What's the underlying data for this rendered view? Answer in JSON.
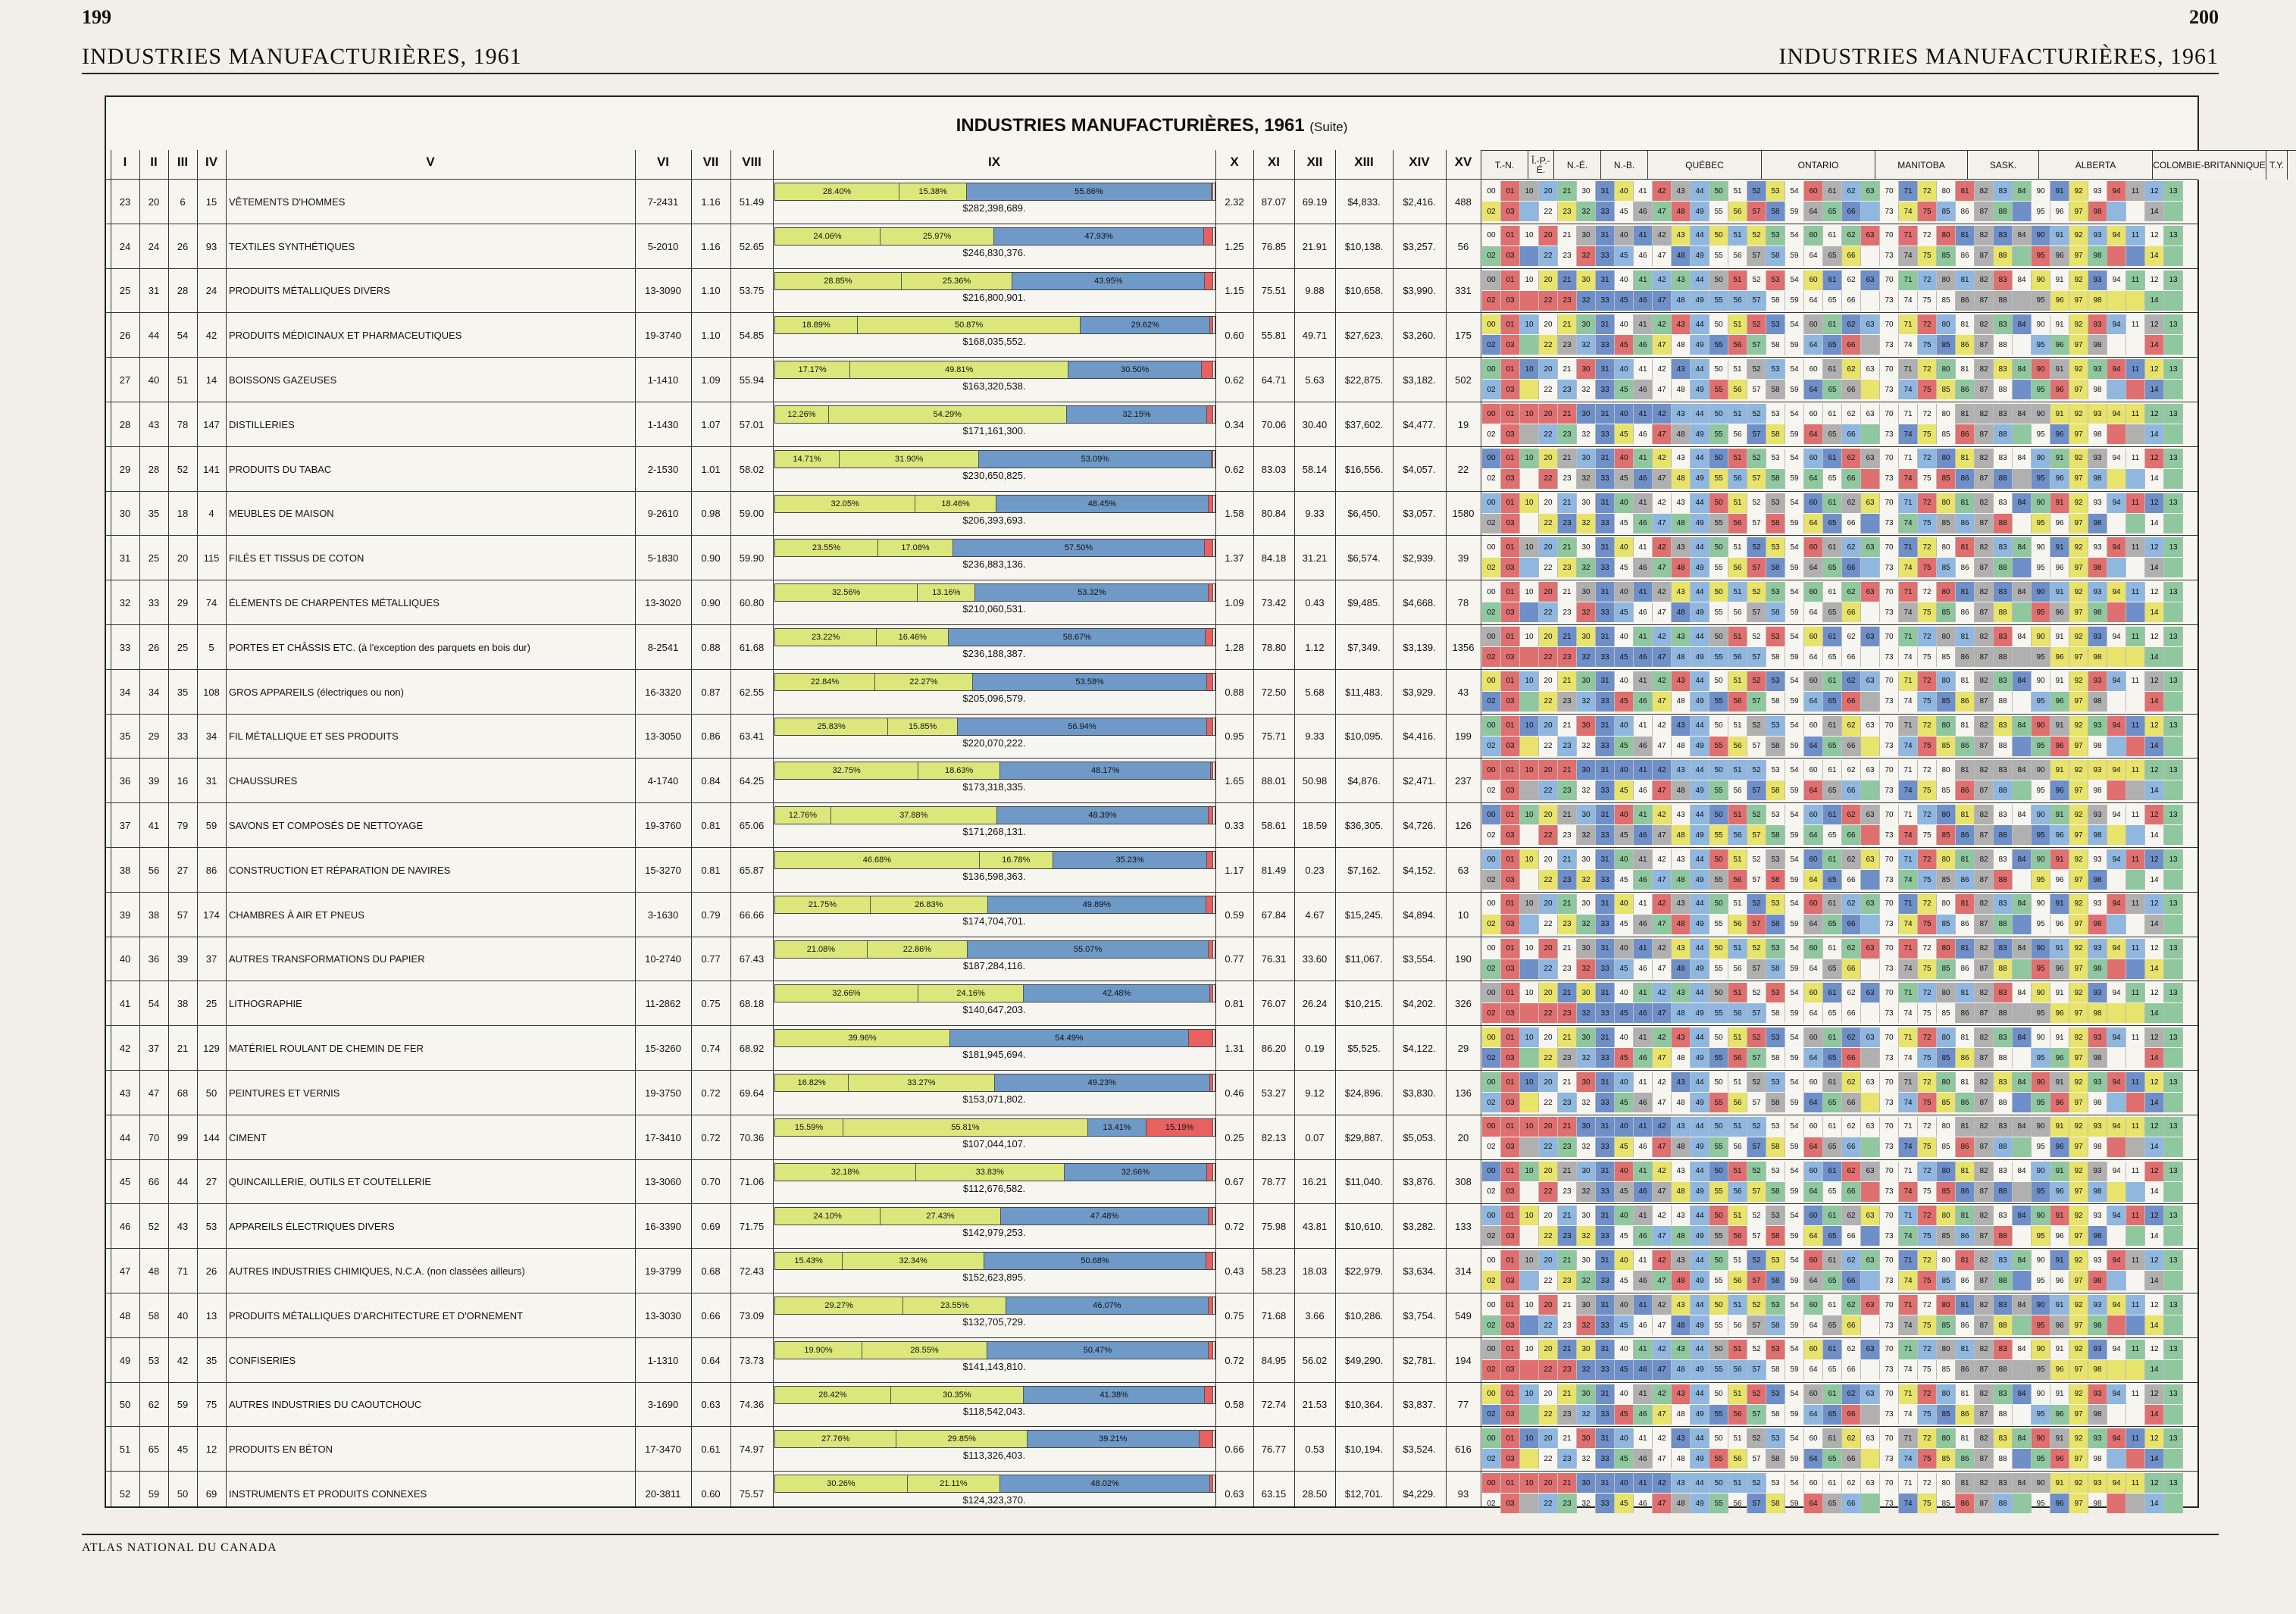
{
  "page": {
    "left_number": "199",
    "right_number": "200",
    "left_running_head": "INDUSTRIES MANUFACTURIÈRES, 1961",
    "right_running_head": "INDUSTRIES MANUFACTURIÈRES, 1961",
    "footer": "ATLAS NATIONAL DU CANADA"
  },
  "table": {
    "title": "INDUSTRIES MANUFACTURIÈRES, 1961",
    "title_suffix": "(Suite)",
    "columns": [
      "I",
      "II",
      "III",
      "IV",
      "V",
      "VI",
      "VII",
      "VIII",
      "IX",
      "X",
      "XI",
      "XII",
      "XIII",
      "XIV",
      "XV"
    ],
    "regions": [
      "T.-N.",
      "Î.-P.-É.",
      "N.-É.",
      "N.-B.",
      "QUÉBEC",
      "ONTARIO",
      "MANITOBA",
      "SASK.",
      "ALBERTA",
      "COLOMBIE-BRITANNIQUE",
      "T.Y.",
      "T.N.-O."
    ],
    "map_line1": [
      "00",
      "01",
      "10",
      "20",
      "21",
      "30",
      "31",
      "40",
      "41",
      "42",
      "43",
      "44",
      "50",
      "51",
      "52",
      "53",
      "54",
      "60",
      "61",
      "62",
      "63",
      "70",
      "71",
      "72",
      "80",
      "81",
      "82",
      "83",
      "84",
      "90",
      "91",
      "92",
      "93",
      "94",
      "11",
      "12",
      "13"
    ],
    "map_line2": [
      "02",
      "03",
      "",
      "22",
      "23",
      "32",
      "33",
      "45",
      "46",
      "47",
      "48",
      "49",
      "55",
      "56",
      "57",
      "58",
      "59",
      "64",
      "65",
      "66",
      "",
      "73",
      "74",
      "75",
      "85",
      "86",
      "87",
      "88",
      "",
      "95",
      "96",
      "97",
      "98",
      "",
      "",
      "14",
      ""
    ],
    "rows": [
      {
        "i": "23",
        "ii": "20",
        "iii": "6",
        "iv": "15",
        "name": "VÊTEMENTS D'HOMMES",
        "vi": "7-2431",
        "vii": "1.16",
        "viii": "51.49",
        "p1": "28.40%",
        "p2": "15.38%",
        "p3": "55.86%",
        "p4": "",
        "total": "$282,398,689.",
        "x": "2.32",
        "xi": "87.07",
        "xii": "69.19",
        "xiii": "$4,833.",
        "xiv": "$2,416.",
        "xv": "488"
      },
      {
        "i": "24",
        "ii": "24",
        "iii": "26",
        "iv": "93",
        "name": "TEXTILES SYNTHÉTIQUES",
        "vi": "5-2010",
        "vii": "1.16",
        "viii": "52.65",
        "p1": "24.06%",
        "p2": "25.97%",
        "p3": "47.93%",
        "p4": "",
        "total": "$246,830,376.",
        "x": "1.25",
        "xi": "76.85",
        "xii": "21.91",
        "xiii": "$10,138.",
        "xiv": "$3,257.",
        "xv": "56"
      },
      {
        "i": "25",
        "ii": "31",
        "iii": "28",
        "iv": "24",
        "name": "PRODUITS MÉTALLIQUES DIVERS",
        "vi": "13-3090",
        "vii": "1.10",
        "viii": "53.75",
        "p1": "28.85%",
        "p2": "25.36%",
        "p3": "43.95%",
        "p4": "",
        "total": "$216,800,901.",
        "x": "1.15",
        "xi": "75.51",
        "xii": "9.88",
        "xiii": "$10,658.",
        "xiv": "$3,990.",
        "xv": "331"
      },
      {
        "i": "26",
        "ii": "44",
        "iii": "54",
        "iv": "42",
        "name": "PRODUITS MÉDICINAUX ET PHARMACEUTIQUES",
        "vi": "19-3740",
        "vii": "1.10",
        "viii": "54.85",
        "p1": "18.89%",
        "p2": "50.87%",
        "p3": "29.62%",
        "p4": "",
        "total": "$168,035,552.",
        "x": "0.60",
        "xi": "55.81",
        "xii": "49.71",
        "xiii": "$27,623.",
        "xiv": "$3,260.",
        "xv": "175"
      },
      {
        "i": "27",
        "ii": "40",
        "iii": "51",
        "iv": "14",
        "name": "BOISSONS GAZEUSES",
        "vi": "1-1410",
        "vii": "1.09",
        "viii": "55.94",
        "p1": "17.17%",
        "p2": "49.81%",
        "p3": "30.50%",
        "p4": "",
        "total": "$163,320,538.",
        "x": "0.62",
        "xi": "64.71",
        "xii": "5.63",
        "xiii": "$22,875.",
        "xiv": "$3,182.",
        "xv": "502"
      },
      {
        "i": "28",
        "ii": "43",
        "iii": "78",
        "iv": "147",
        "name": "DISTILLERIES",
        "vi": "1-1430",
        "vii": "1.07",
        "viii": "57.01",
        "p1": "12.26%",
        "p2": "54.29%",
        "p3": "32.15%",
        "p4": "",
        "total": "$171,161,300.",
        "x": "0.34",
        "xi": "70.06",
        "xii": "30.40",
        "xiii": "$37,602.",
        "xiv": "$4,477.",
        "xv": "19"
      },
      {
        "i": "29",
        "ii": "28",
        "iii": "52",
        "iv": "141",
        "name": "PRODUITS DU TABAC",
        "vi": "2-1530",
        "vii": "1.01",
        "viii": "58.02",
        "p1": "14.71%",
        "p2": "31.90%",
        "p3": "53.09%",
        "p4": "",
        "total": "$230,650,825.",
        "x": "0.62",
        "xi": "83.03",
        "xii": "58.14",
        "xiii": "$16,556.",
        "xiv": "$4,057.",
        "xv": "22"
      },
      {
        "i": "30",
        "ii": "35",
        "iii": "18",
        "iv": "4",
        "name": "MEUBLES DE MAISON",
        "vi": "9-2610",
        "vii": "0.98",
        "viii": "59.00",
        "p1": "32.05%",
        "p2": "18.46%",
        "p3": "48.45%",
        "p4": "",
        "total": "$206,393,693.",
        "x": "1.58",
        "xi": "80.84",
        "xii": "9.33",
        "xiii": "$6,450.",
        "xiv": "$3,057.",
        "xv": "1580"
      },
      {
        "i": "31",
        "ii": "25",
        "iii": "20",
        "iv": "115",
        "name": "FILÉS ET TISSUS DE COTON",
        "vi": "5-1830",
        "vii": "0.90",
        "viii": "59.90",
        "p1": "23.55%",
        "p2": "17.08%",
        "p3": "57.50%",
        "p4": "",
        "total": "$236,883,136.",
        "x": "1.37",
        "xi": "84.18",
        "xii": "31.21",
        "xiii": "$6,574.",
        "xiv": "$2,939.",
        "xv": "39"
      },
      {
        "i": "32",
        "ii": "33",
        "iii": "29",
        "iv": "74",
        "name": "ÉLÉMENTS DE CHARPENTES MÉTALLIQUES",
        "vi": "13-3020",
        "vii": "0.90",
        "viii": "60.80",
        "p1": "32.56%",
        "p2": "13.16%",
        "p3": "53.32%",
        "p4": "",
        "total": "$210,060,531.",
        "x": "1.09",
        "xi": "73.42",
        "xii": "0.43",
        "xiii": "$9,485.",
        "xiv": "$4,668.",
        "xv": "78"
      },
      {
        "i": "33",
        "ii": "26",
        "iii": "25",
        "iv": "5",
        "name": "PORTES ET CHÂSSIS ETC. (à l'exception des parquets en bois dur)",
        "vi": "8-2541",
        "vii": "0.88",
        "viii": "61.68",
        "p1": "23.22%",
        "p2": "16.46%",
        "p3": "58.67%",
        "p4": "",
        "total": "$236,188,387.",
        "x": "1.28",
        "xi": "78.80",
        "xii": "1.12",
        "xiii": "$7,349.",
        "xiv": "$3,139.",
        "xv": "1356"
      },
      {
        "i": "34",
        "ii": "34",
        "iii": "35",
        "iv": "108",
        "name": "GROS APPAREILS (électriques ou non)",
        "vi": "16-3320",
        "vii": "0.87",
        "viii": "62.55",
        "p1": "22.84%",
        "p2": "22.27%",
        "p3": "53.58%",
        "p4": "",
        "total": "$205,096,579.",
        "x": "0.88",
        "xi": "72.50",
        "xii": "5.68",
        "xiii": "$11,483.",
        "xiv": "$3,929.",
        "xv": "43"
      },
      {
        "i": "35",
        "ii": "29",
        "iii": "33",
        "iv": "34",
        "name": "FIL MÉTALLIQUE ET SES PRODUITS",
        "vi": "13-3050",
        "vii": "0.86",
        "viii": "63.41",
        "p1": "25.83%",
        "p2": "15.85%",
        "p3": "56.94%",
        "p4": "",
        "total": "$220,070,222.",
        "x": "0.95",
        "xi": "75.71",
        "xii": "9.33",
        "xiii": "$10,095.",
        "xiv": "$4,416.",
        "xv": "199"
      },
      {
        "i": "36",
        "ii": "39",
        "iii": "16",
        "iv": "31",
        "name": "CHAUSSURES",
        "vi": "4-1740",
        "vii": "0.84",
        "viii": "64.25",
        "p1": "32.75%",
        "p2": "18.63%",
        "p3": "48.17%",
        "p4": "",
        "total": "$173,318,335.",
        "x": "1.65",
        "xi": "88.01",
        "xii": "50.98",
        "xiii": "$4,876.",
        "xiv": "$2,471.",
        "xv": "237"
      },
      {
        "i": "37",
        "ii": "41",
        "iii": "79",
        "iv": "59",
        "name": "SAVONS ET COMPOSÉS DE NETTOYAGE",
        "vi": "19-3760",
        "vii": "0.81",
        "viii": "65.06",
        "p1": "12.76%",
        "p2": "37.88%",
        "p3": "48.39%",
        "p4": "",
        "total": "$171,268,131.",
        "x": "0.33",
        "xi": "58.61",
        "xii": "18.59",
        "xiii": "$36,305.",
        "xiv": "$4,726.",
        "xv": "126"
      },
      {
        "i": "38",
        "ii": "56",
        "iii": "27",
        "iv": "86",
        "name": "CONSTRUCTION ET RÉPARATION DE NAVIRES",
        "vi": "15-3270",
        "vii": "0.81",
        "viii": "65.87",
        "p1": "46.68%",
        "p2": "16.78%",
        "p3": "35.23%",
        "p4": "",
        "total": "$136,598,363.",
        "x": "1.17",
        "xi": "81.49",
        "xii": "0.23",
        "xiii": "$7,162.",
        "xiv": "$4,152.",
        "xv": "63"
      },
      {
        "i": "39",
        "ii": "38",
        "iii": "57",
        "iv": "174",
        "name": "CHAMBRES À AIR ET PNEUS",
        "vi": "3-1630",
        "vii": "0.79",
        "viii": "66.66",
        "p1": "21.75%",
        "p2": "26.83%",
        "p3": "49.89%",
        "p4": "",
        "total": "$174,704,701.",
        "x": "0.59",
        "xi": "67.84",
        "xii": "4.67",
        "xiii": "$15,245.",
        "xiv": "$4,894.",
        "xv": "10"
      },
      {
        "i": "40",
        "ii": "36",
        "iii": "39",
        "iv": "37",
        "name": "AUTRES TRANSFORMATIONS DU PAPIER",
        "vi": "10-2740",
        "vii": "0.77",
        "viii": "67.43",
        "p1": "21.08%",
        "p2": "22.86%",
        "p3": "55.07%",
        "p4": "",
        "total": "$187,284,116.",
        "x": "0.77",
        "xi": "76.31",
        "xii": "33.60",
        "xiii": "$11,067.",
        "xiv": "$3,554.",
        "xv": "190"
      },
      {
        "i": "41",
        "ii": "54",
        "iii": "38",
        "iv": "25",
        "name": "LITHOGRAPHIE",
        "vi": "11-2862",
        "vii": "0.75",
        "viii": "68.18",
        "p1": "32.66%",
        "p2": "24.16%",
        "p3": "42.48%",
        "p4": "",
        "total": "$140,647,203.",
        "x": "0.81",
        "xi": "76.07",
        "xii": "26.24",
        "xiii": "$10,215.",
        "xiv": "$4,202.",
        "xv": "326"
      },
      {
        "i": "42",
        "ii": "37",
        "iii": "21",
        "iv": "129",
        "name": "MATÉRIEL ROULANT DE CHEMIN DE FER",
        "vi": "15-3260",
        "vii": "0.74",
        "viii": "68.92",
        "p1": "39.96%",
        "p2": "",
        "p3": "54.49%",
        "p4": "",
        "total": "$181,945,694.",
        "x": "1.31",
        "xi": "86.20",
        "xii": "0.19",
        "xiii": "$5,525.",
        "xiv": "$4,122.",
        "xv": "29"
      },
      {
        "i": "43",
        "ii": "47",
        "iii": "68",
        "iv": "50",
        "name": "PEINTURES ET VERNIS",
        "vi": "19-3750",
        "vii": "0.72",
        "viii": "69.64",
        "p1": "16.82%",
        "p2": "33.27%",
        "p3": "49.23%",
        "p4": "",
        "total": "$153,071,802.",
        "x": "0.46",
        "xi": "53.27",
        "xii": "9.12",
        "xiii": "$24,896.",
        "xiv": "$3,830.",
        "xv": "136"
      },
      {
        "i": "44",
        "ii": "70",
        "iii": "99",
        "iv": "144",
        "name": "CIMENT",
        "vi": "17-3410",
        "vii": "0.72",
        "viii": "70.36",
        "p1": "15.59%",
        "p2": "55.81%",
        "p3": "13.41%",
        "p4": "15.19%",
        "total": "$107,044,107.",
        "x": "0.25",
        "xi": "82.13",
        "xii": "0.07",
        "xiii": "$29,887.",
        "xiv": "$5,053.",
        "xv": "20"
      },
      {
        "i": "45",
        "ii": "66",
        "iii": "44",
        "iv": "27",
        "name": "QUINCAILLERIE, OUTILS ET COUTELLERIE",
        "vi": "13-3060",
        "vii": "0.70",
        "viii": "71.06",
        "p1": "32.18%",
        "p2": "33.83%",
        "p3": "32.66%",
        "p4": "",
        "total": "$112,676,582.",
        "x": "0.67",
        "xi": "78.77",
        "xii": "16.21",
        "xiii": "$11,040.",
        "xiv": "$3,876.",
        "xv": "308"
      },
      {
        "i": "46",
        "ii": "52",
        "iii": "43",
        "iv": "53",
        "name": "APPAREILS ÉLECTRIQUES DIVERS",
        "vi": "16-3390",
        "vii": "0.69",
        "viii": "71.75",
        "p1": "24.10%",
        "p2": "27.43%",
        "p3": "47.48%",
        "p4": "",
        "total": "$142,979,253.",
        "x": "0.72",
        "xi": "75.98",
        "xii": "43.81",
        "xiii": "$10,610.",
        "xiv": "$3,282.",
        "xv": "133"
      },
      {
        "i": "47",
        "ii": "48",
        "iii": "71",
        "iv": "26",
        "name": "AUTRES INDUSTRIES CHIMIQUES, N.C.A. (non classées ailleurs)",
        "vi": "19-3799",
        "vii": "0.68",
        "viii": "72.43",
        "p1": "15.43%",
        "p2": "32.34%",
        "p3": "50.68%",
        "p4": "",
        "total": "$152,623,895.",
        "x": "0.43",
        "xi": "58.23",
        "xii": "18.03",
        "xiii": "$22,979.",
        "xiv": "$3,634.",
        "xv": "314"
      },
      {
        "i": "48",
        "ii": "58",
        "iii": "40",
        "iv": "13",
        "name": "PRODUITS MÉTALLIQUES D'ARCHITECTURE ET D'ORNEMENT",
        "vi": "13-3030",
        "vii": "0.66",
        "viii": "73.09",
        "p1": "29.27%",
        "p2": "23.55%",
        "p3": "46.07%",
        "p4": "",
        "total": "$132,705,729.",
        "x": "0.75",
        "xi": "71.68",
        "xii": "3.66",
        "xiii": "$10,286.",
        "xiv": "$3,754.",
        "xv": "549"
      },
      {
        "i": "49",
        "ii": "53",
        "iii": "42",
        "iv": "35",
        "name": "CONFISERIES",
        "vi": "1-1310",
        "vii": "0.64",
        "viii": "73.73",
        "p1": "19.90%",
        "p2": "28.55%",
        "p3": "50.47%",
        "p4": "",
        "total": "$141,143,810.",
        "x": "0.72",
        "xi": "84.95",
        "xii": "56.02",
        "xiii": "$49,290.",
        "xiv": "$2,781.",
        "xv": "194"
      },
      {
        "i": "50",
        "ii": "62",
        "iii": "59",
        "iv": "75",
        "name": "AUTRES INDUSTRIES DU CAOUTCHOUC",
        "vi": "3-1690",
        "vii": "0.63",
        "viii": "74.36",
        "p1": "26.42%",
        "p2": "30.35%",
        "p3": "41.38%",
        "p4": "",
        "total": "$118,542,043.",
        "x": "0.58",
        "xi": "72.74",
        "xii": "21.53",
        "xiii": "$10,364.",
        "xiv": "$3,837.",
        "xv": "77"
      },
      {
        "i": "51",
        "ii": "65",
        "iii": "45",
        "iv": "12",
        "name": "PRODUITS EN BÉTON",
        "vi": "17-3470",
        "vii": "0.61",
        "viii": "74.97",
        "p1": "27.76%",
        "p2": "29.85%",
        "p3": "39.21%",
        "p4": "",
        "total": "$113,326,403.",
        "x": "0.66",
        "xi": "76.77",
        "xii": "0.53",
        "xiii": "$10,194.",
        "xiv": "$3,524.",
        "xv": "616"
      },
      {
        "i": "52",
        "ii": "59",
        "iii": "50",
        "iv": "69",
        "name": "INSTRUMENTS ET PRODUITS CONNEXES",
        "vi": "20-3811",
        "vii": "0.60",
        "viii": "75.57",
        "p1": "30.26%",
        "p2": "21.11%",
        "p3": "48.02%",
        "p4": "",
        "total": "$124,323,370.",
        "x": "0.63",
        "xi": "63.15",
        "xii": "28.50",
        "xiii": "$12,701.",
        "xiv": "$4,229.",
        "xv": "93"
      }
    ]
  },
  "colors": {
    "yellow": "#dbe77a",
    "blue": "#6f9ac8",
    "red": "#e86060"
  }
}
